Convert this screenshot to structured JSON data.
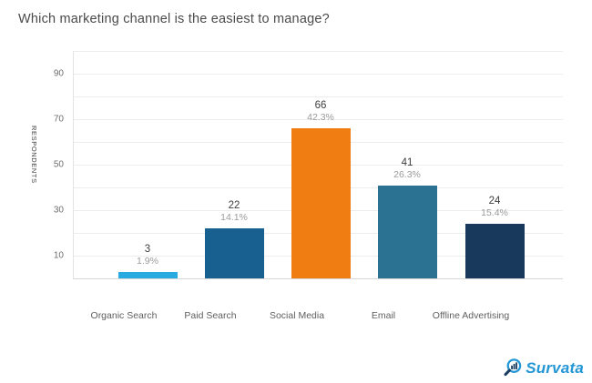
{
  "title": "Which marketing channel is the easiest to manage?",
  "chart_data": {
    "type": "bar",
    "title": "Which marketing channel is the easiest to manage?",
    "categories": [
      "Organic Search",
      "Paid Search",
      "Social Media",
      "Email",
      "Offline Advertising"
    ],
    "values": [
      3,
      22,
      66,
      41,
      24
    ],
    "percent_labels": [
      "1.9%",
      "14.1%",
      "42.3%",
      "26.3%",
      "15.4%"
    ],
    "bar_colors": [
      "#29abe2",
      "#17608f",
      "#ef7d12",
      "#2b7191",
      "#18395b"
    ],
    "xlabel": "",
    "ylabel": "RESPONDENTS",
    "ylim": [
      0,
      100
    ],
    "yticks": [
      10,
      30,
      50,
      70,
      90
    ],
    "grid": "horizontal every 10, light gray",
    "legend": "none"
  },
  "branding": {
    "logo_text": "Survata",
    "logo_color": "#2396d5",
    "logo_icon": "magnifier-bar-chart-icon"
  }
}
